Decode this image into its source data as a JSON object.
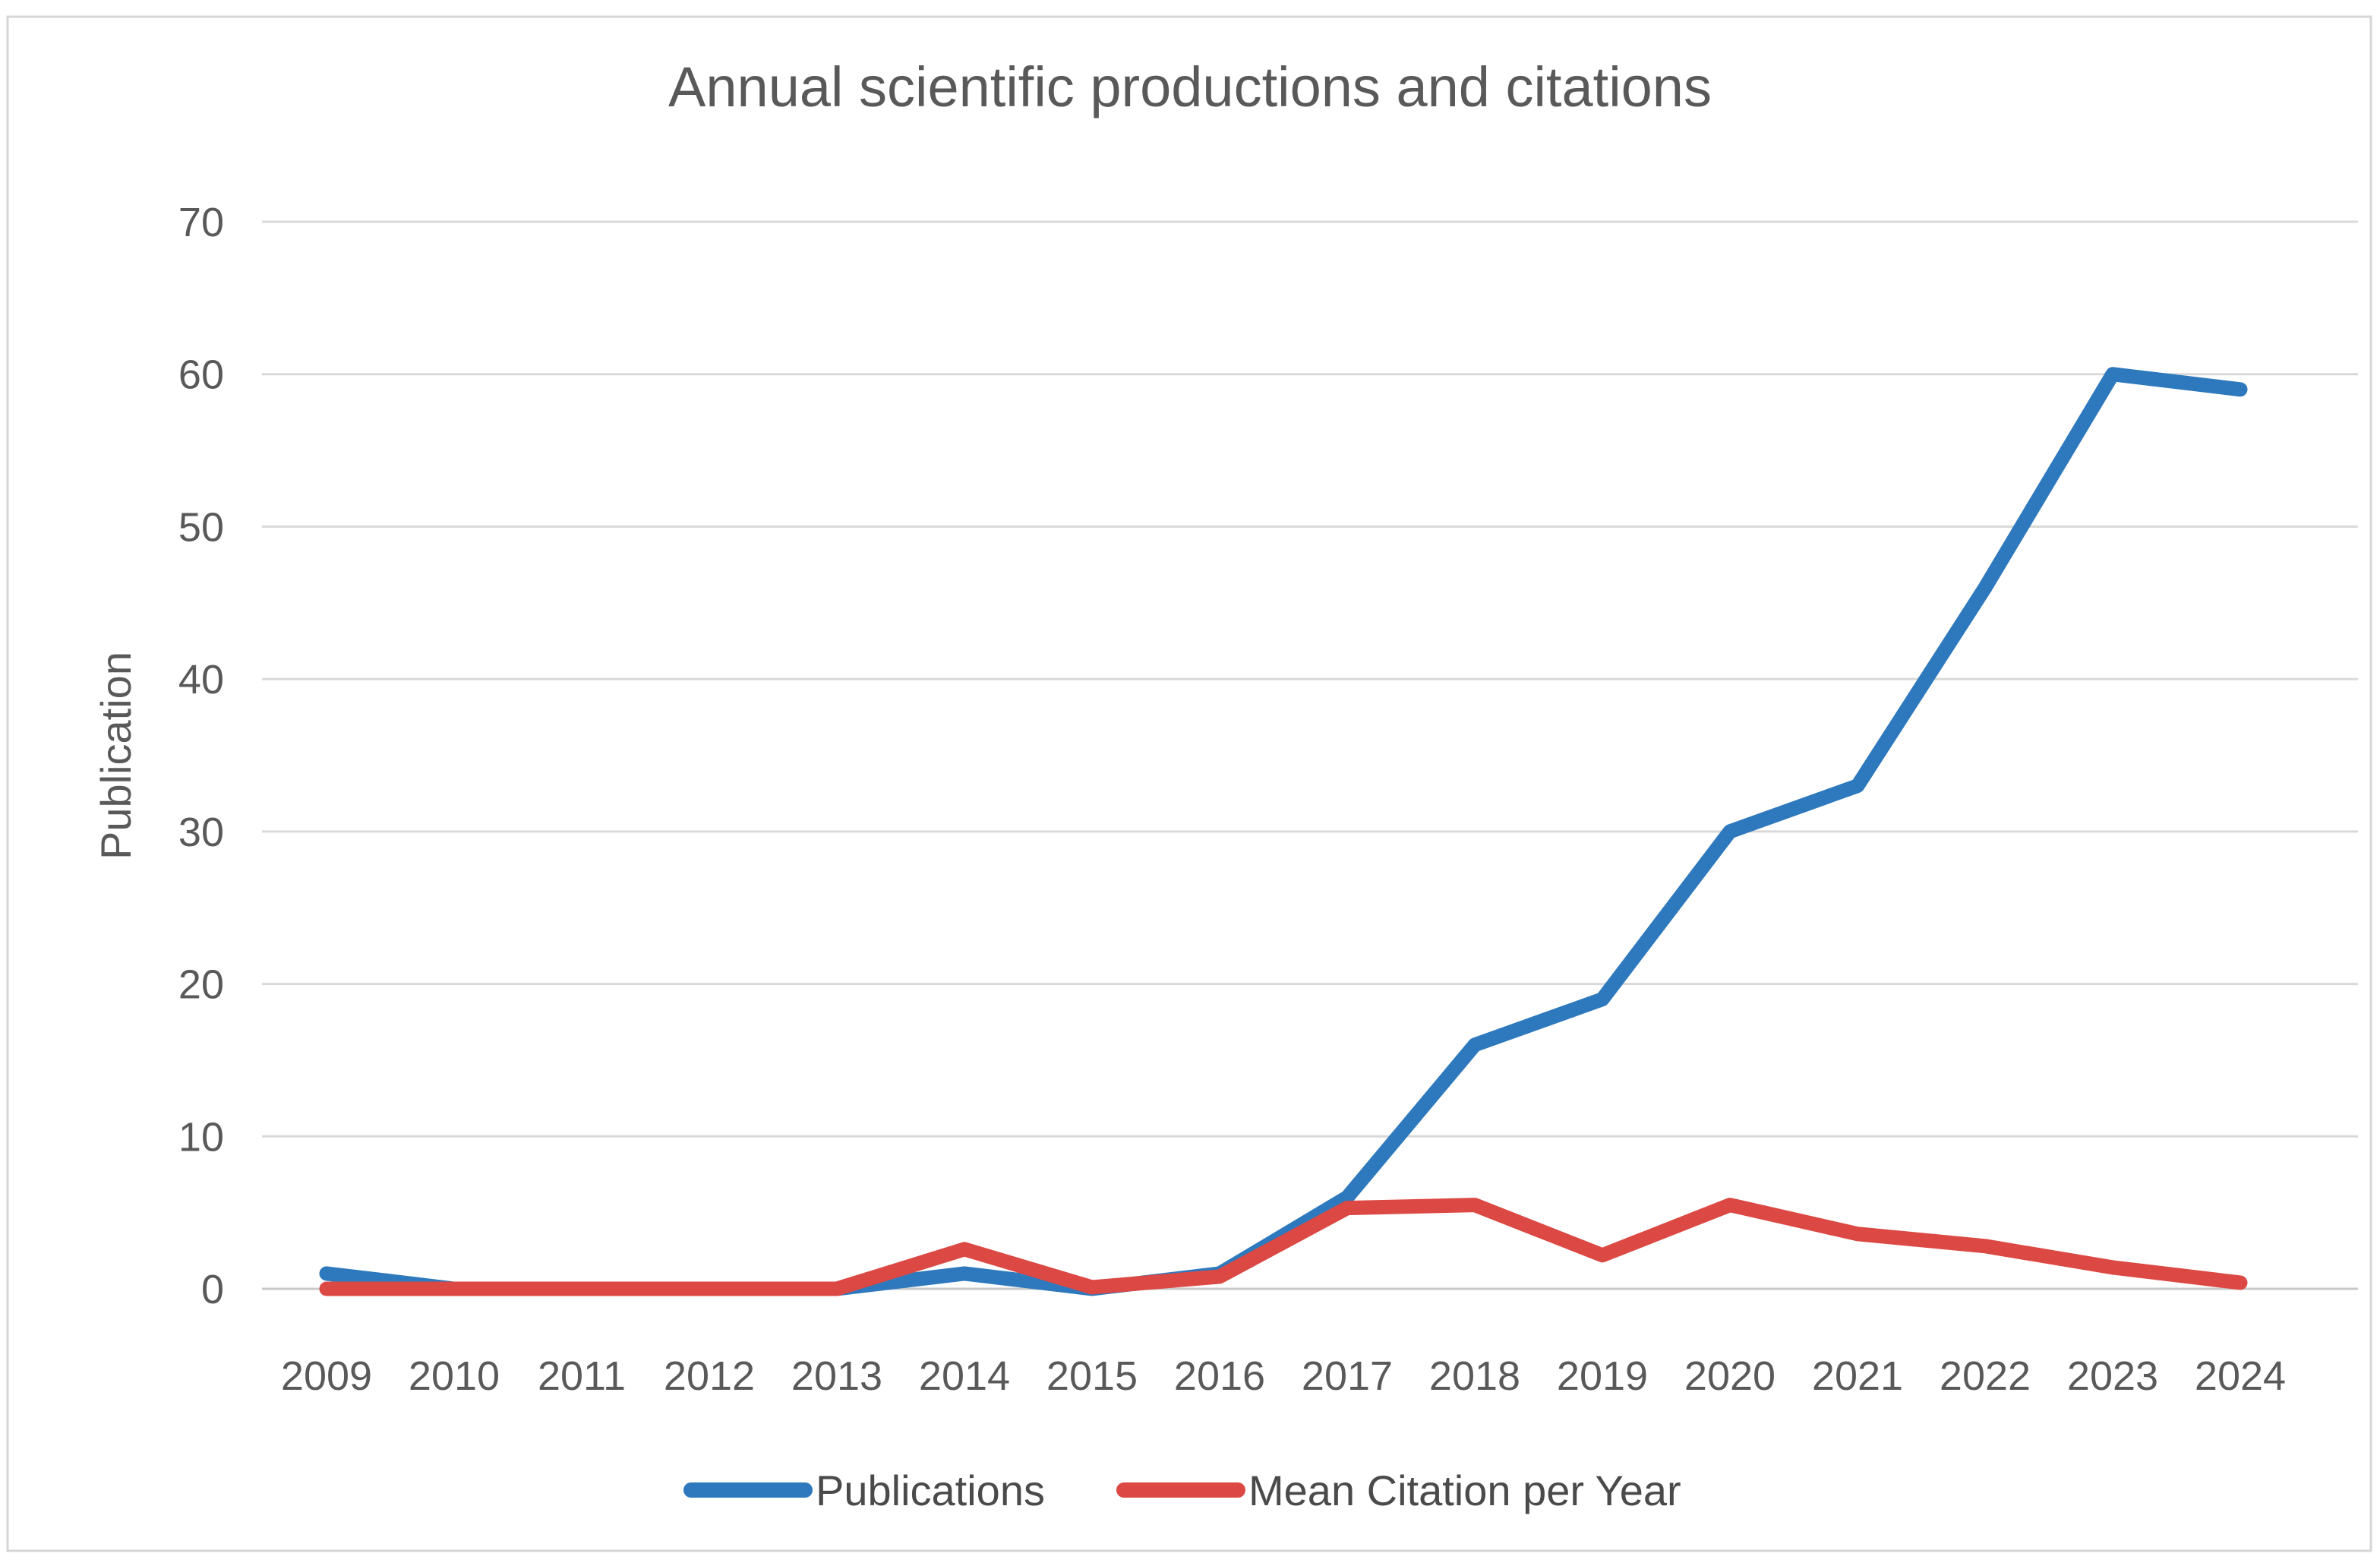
{
  "figure": {
    "title": "Annual scientific productions and citations",
    "y_axis_title": "Publication"
  },
  "chart_data": {
    "type": "line",
    "title": "Annual scientific productions and citations",
    "xlabel": "",
    "ylabel": "Publication",
    "ylim": [
      0,
      70
    ],
    "y_ticks": [
      0,
      10,
      20,
      30,
      40,
      50,
      60,
      70
    ],
    "grid": "horizontal",
    "legend_position": "bottom",
    "categories": [
      "2009",
      "2010",
      "2011",
      "2012",
      "2013",
      "2014",
      "2015",
      "2016",
      "2017",
      "2018",
      "2019",
      "2020",
      "2021",
      "2022",
      "2023",
      "2024"
    ],
    "series": [
      {
        "name": "Publications",
        "color": "#2E79BD",
        "values": [
          1,
          0,
          0,
          0,
          0,
          1,
          0,
          1,
          6,
          16,
          19,
          30,
          33,
          46,
          60,
          59
        ]
      },
      {
        "name": "Mean Citation per Year",
        "color": "#DC4843",
        "values": [
          0,
          0,
          0,
          0,
          0,
          2.6,
          0.1,
          0.8,
          5.3,
          5.5,
          2.2,
          5.5,
          3.6,
          2.8,
          1.4,
          0.4
        ]
      }
    ]
  },
  "colors": {
    "grid_line": "#D9D9D9",
    "zero_line": "#C9C9C9",
    "frame": "#D6D6D6",
    "tick_text": "#595959",
    "title_text": "#595959",
    "legend_text": "#4A4A4A"
  }
}
